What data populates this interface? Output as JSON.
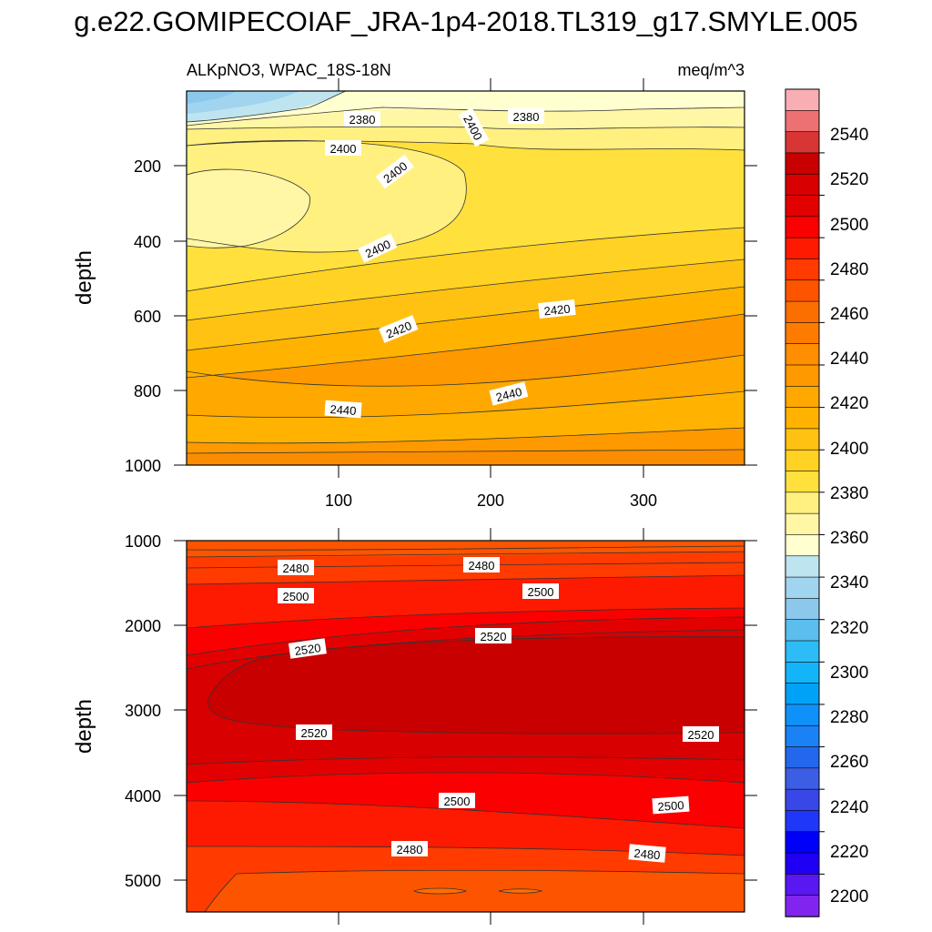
{
  "title": "g.e22.GOMIPECOIAF_JRA-1p4-2018.TL319_g17.SMYLE.005",
  "chart_data": [
    {
      "type": "filled-contour",
      "panel": "upper",
      "left_label": "ALKpNO3, WPAC_18S-18N",
      "right_label": "meq/m^3",
      "ylabel": "depth",
      "xlabel": "",
      "x_range": [
        1,
        366
      ],
      "y_range": [
        0,
        1000
      ],
      "y_reversed": true,
      "x_ticks": [
        "100",
        "200",
        "300"
      ],
      "y_ticks": [
        "200",
        "400",
        "600",
        "800",
        "1000"
      ],
      "contour_labels": [
        "2380",
        "2380",
        "2400",
        "2400",
        "2400",
        "2400",
        "2420",
        "2420",
        "2440",
        "2440"
      ],
      "bands": [
        {
          "depth": 0,
          "value": 2365
        },
        {
          "depth": 50,
          "value": 2380
        },
        {
          "depth": 150,
          "value": 2390
        },
        {
          "depth": 300,
          "value": 2395
        },
        {
          "depth": 450,
          "value": 2405
        },
        {
          "depth": 550,
          "value": 2415
        },
        {
          "depth": 650,
          "value": 2425
        },
        {
          "depth": 750,
          "value": 2435
        },
        {
          "depth": 850,
          "value": 2442
        },
        {
          "depth": 950,
          "value": 2450
        }
      ]
    },
    {
      "type": "filled-contour",
      "panel": "lower",
      "ylabel": "depth",
      "xlabel": "",
      "x_range": [
        1,
        366
      ],
      "y_range": [
        1000,
        5400
      ],
      "y_reversed": true,
      "y_ticks": [
        "1000",
        "2000",
        "3000",
        "4000",
        "5000"
      ],
      "contour_labels": [
        "2480",
        "2480",
        "2500",
        "2500",
        "2520",
        "2520",
        "2520",
        "2520",
        "2500",
        "2500",
        "2480",
        "2480"
      ],
      "bands": [
        {
          "depth": 1000,
          "value": 2465
        },
        {
          "depth": 1200,
          "value": 2480
        },
        {
          "depth": 1600,
          "value": 2500
        },
        {
          "depth": 1900,
          "value": 2515
        },
        {
          "depth": 2800,
          "value": 2525
        },
        {
          "depth": 3700,
          "value": 2515
        },
        {
          "depth": 4200,
          "value": 2505
        },
        {
          "depth": 4600,
          "value": 2490
        },
        {
          "depth": 5000,
          "value": 2475
        }
      ]
    }
  ],
  "colorbar": {
    "labels": [
      "2540",
      "2520",
      "2500",
      "2480",
      "2460",
      "2440",
      "2420",
      "2400",
      "2380",
      "2360",
      "2340",
      "2320",
      "2300",
      "2280",
      "2260",
      "2240",
      "2220",
      "2200"
    ],
    "colors": [
      "#f9aeb4",
      "#ed7172",
      "#d83535",
      "#c80000",
      "#d80000",
      "#e30000",
      "#fb0000",
      "#fd1a00",
      "#ff3b00",
      "#fd5400",
      "#fb6f00",
      "#fd7c00",
      "#ff8e00",
      "#ff9900",
      "#ffa800",
      "#ffb300",
      "#ffc212",
      "#ffd223",
      "#ffe03d",
      "#fff080",
      "#fff7a5",
      "#ffffd0",
      "#bee4f0",
      "#a0d4ef",
      "#8bc8ec",
      "#5bbeed",
      "#2dbcf5",
      "#14b4f9",
      "#00a2f7",
      "#0f91f9",
      "#1b82f6",
      "#2368ec",
      "#3c5ee4",
      "#3947e6",
      "#1f37f9",
      "#0000f8",
      "#2000f4",
      "#5917f2",
      "#8125ee"
    ]
  }
}
